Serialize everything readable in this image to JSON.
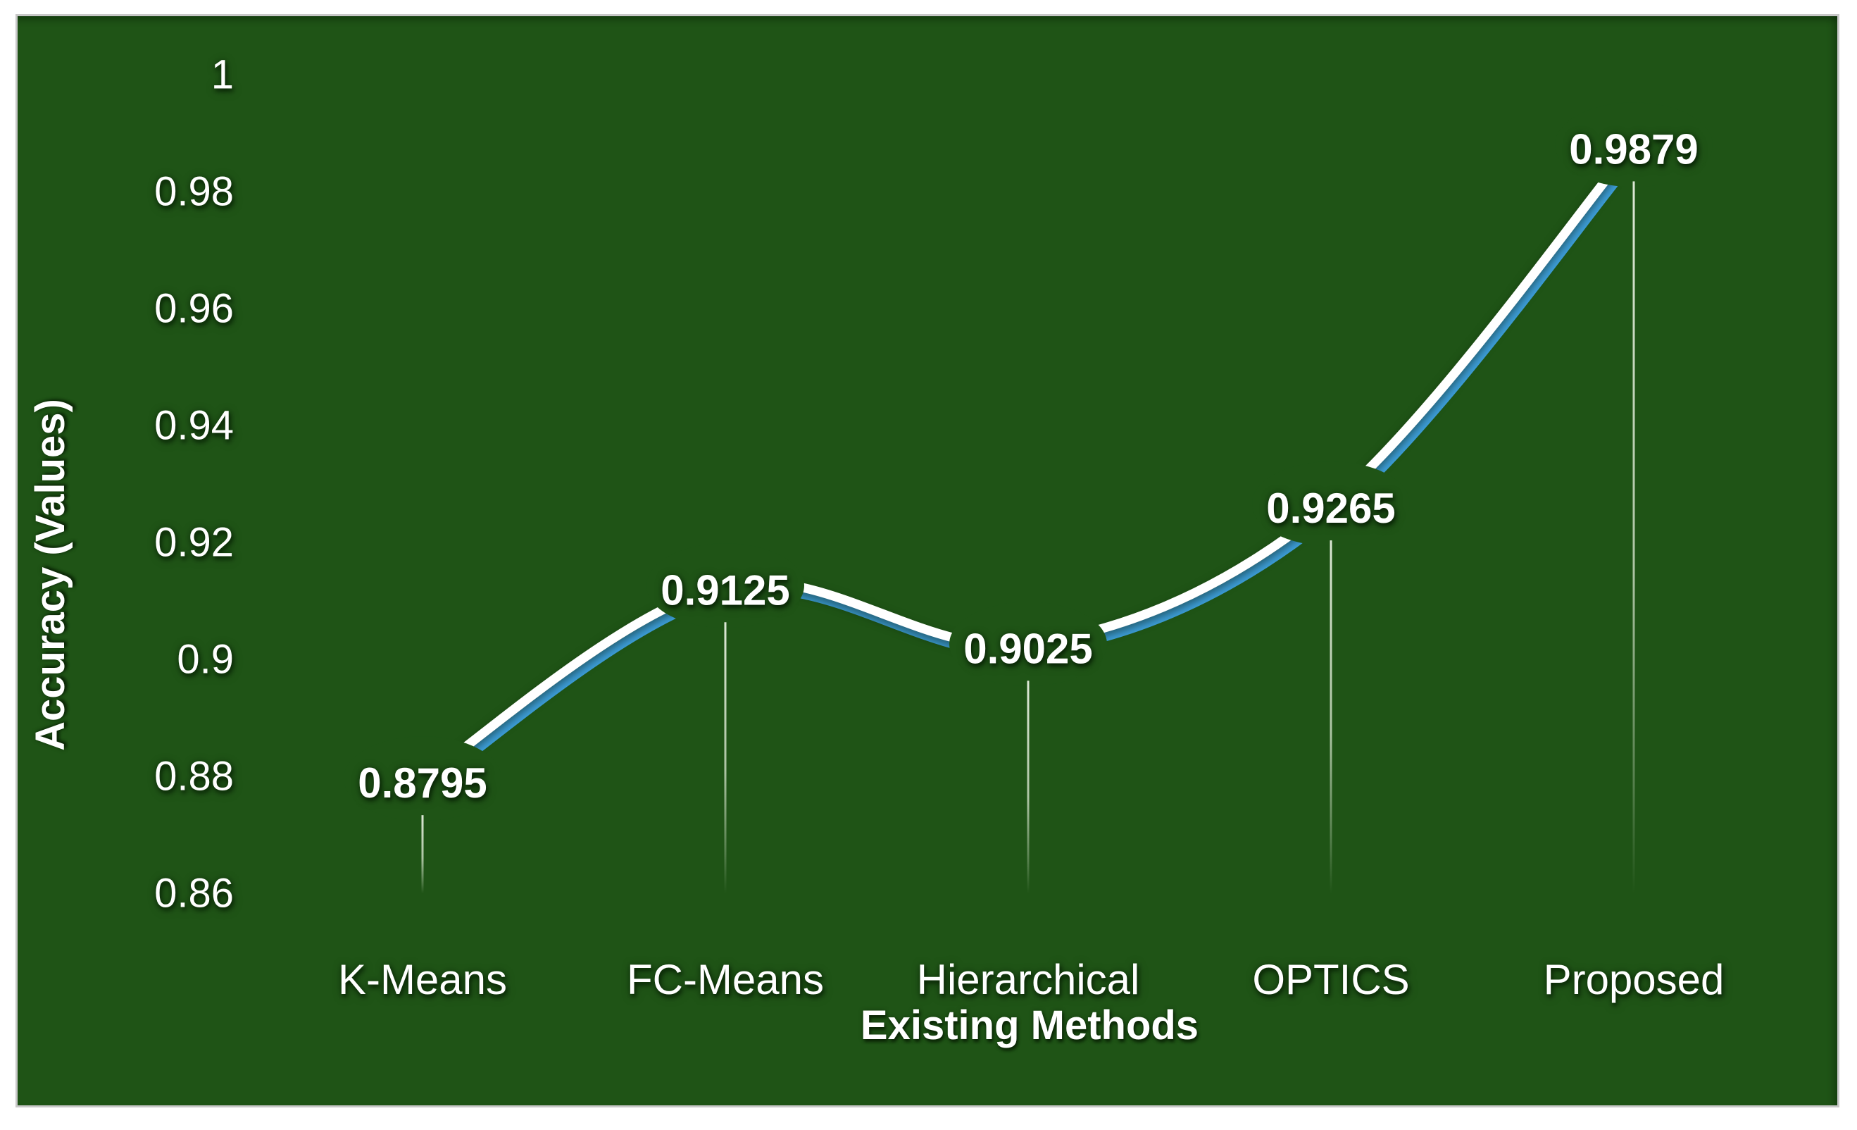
{
  "figure": {
    "kind": "statistical-line-chart",
    "description_visible_text_only": true
  },
  "axes": {
    "y_title": "Accuracy (Values)",
    "x_title": "Existing Methods",
    "y_ticks": [
      "1",
      "0.98",
      "0.96",
      "0.94",
      "0.92",
      "0.9",
      "0.88",
      "0.86"
    ]
  },
  "chart_data": {
    "type": "line",
    "title": "",
    "categories": [
      "K-Means",
      "FC-Means",
      "Hierarchical",
      "OPTICS",
      "Proposed"
    ],
    "series": [
      {
        "name": "Accuracy",
        "values": [
          0.8795,
          0.9125,
          0.9025,
          0.9265,
          0.9879
        ]
      }
    ],
    "data_labels": [
      "0.8795",
      "0.9125",
      "0.9025",
      "0.9265",
      "0.9879"
    ],
    "xlabel": "Existing Methods",
    "ylabel": "Accuracy (Values)",
    "ylim": [
      0.86,
      1.0
    ],
    "y_tick_step": 0.02,
    "grid": false,
    "legend": "none",
    "line_smoothing": true,
    "drop_lines": true
  },
  "colors": {
    "background": "#1F5416",
    "page_background": "#FFFFFF",
    "frame_border": "#C8C8C8",
    "line_primary": "#FFFFFF",
    "line_accent": "#3E9FDB",
    "text": "#FFFFFF",
    "drop_line_top": "#E6EFDF",
    "drop_line_mid": "#CFDFC6"
  }
}
